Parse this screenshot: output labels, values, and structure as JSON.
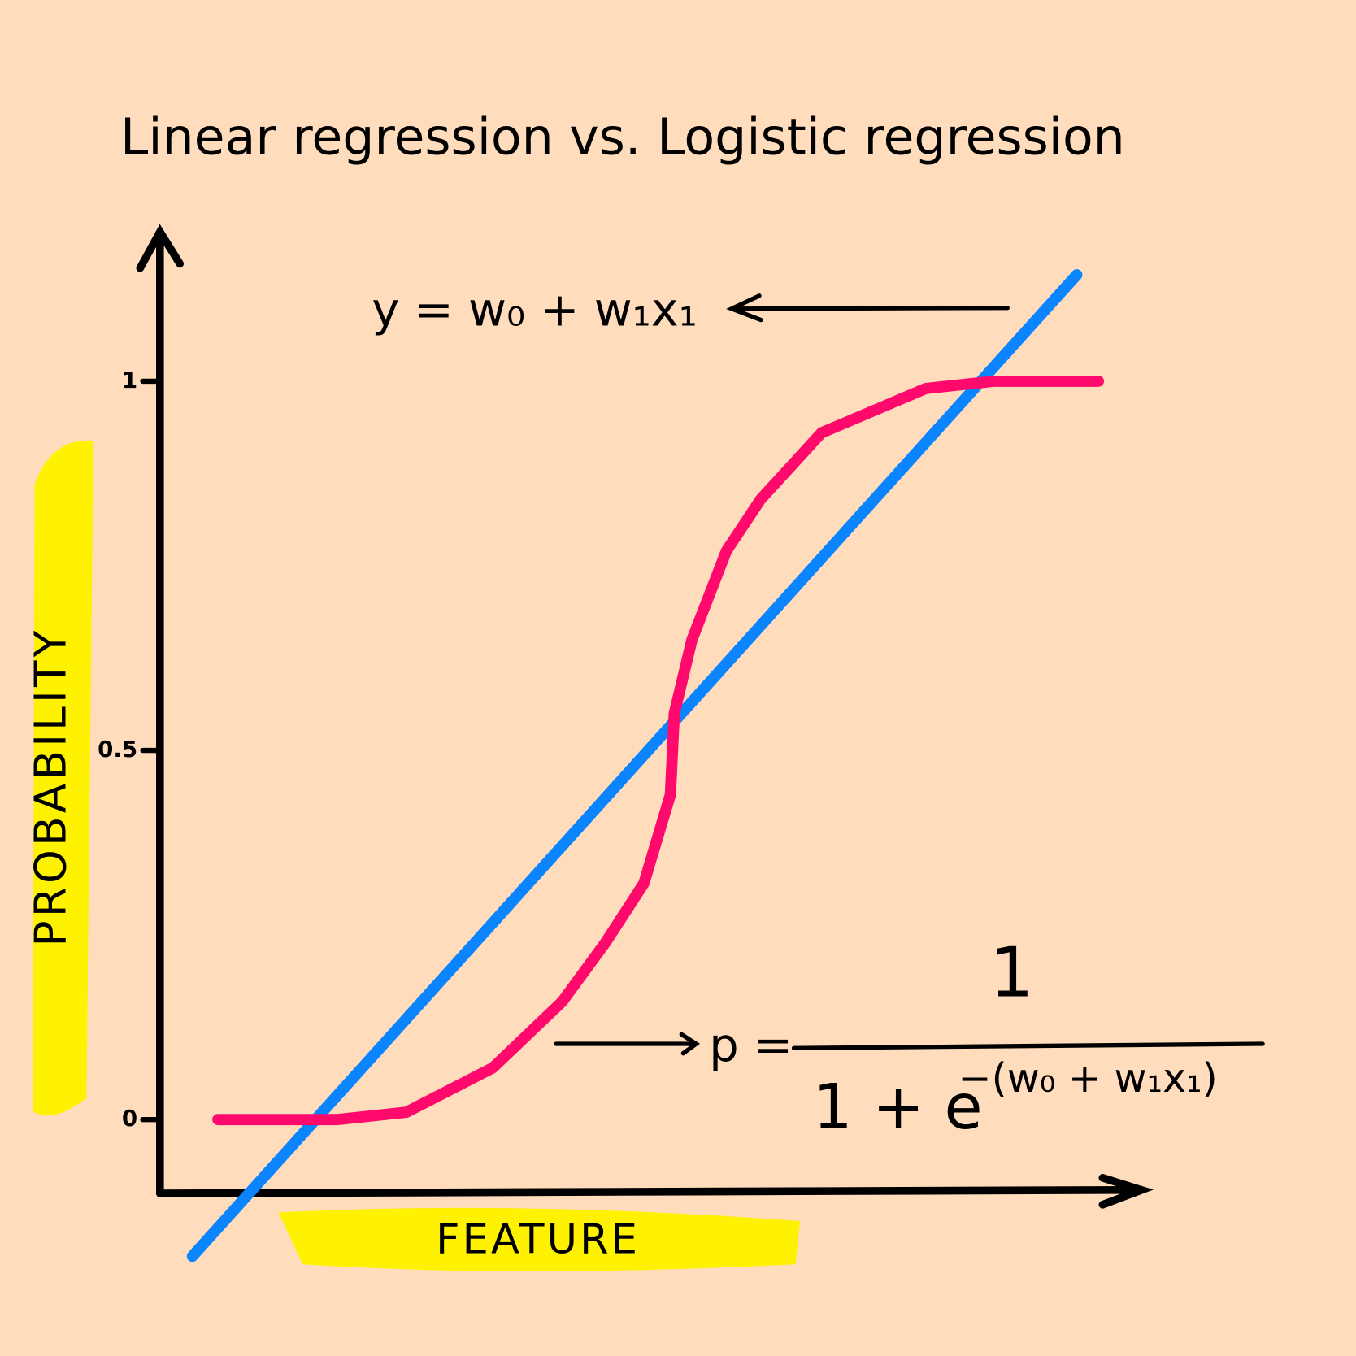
{
  "chart_data": {
    "type": "line",
    "title": "Linear regression vs. Logistic regression",
    "y_label": "PROBABILITY",
    "x_label": "FEATURE",
    "annotations": [
      "y = w₀ + w₁x₁",
      "p =",
      "1",
      "1 + e",
      "−(w₀ + w₁x₁)"
    ],
    "ylim": [
      -0.1,
      1.2
    ],
    "yticks": [
      0,
      0.5,
      1
    ],
    "xlim": [
      0,
      10
    ],
    "series": [
      {
        "color": "#0a84ff",
        "x": [
          0.33,
          9.34
        ],
        "values": [
          -0.185,
          1.144
        ]
      },
      {
        "color": "#ff0a6c",
        "x": [
          0.59,
          1.81,
          2.51,
          3.39,
          4.1,
          4.54,
          4.93,
          5.2,
          5.24,
          5.42,
          5.77,
          6.12,
          6.74,
          7.8,
          8.5,
          9.56
        ],
        "values": [
          0,
          0,
          0.01,
          0.07,
          0.16,
          0.24,
          0.32,
          0.44,
          0.55,
          0.65,
          0.77,
          0.84,
          0.93,
          0.99,
          1.0,
          1.0
        ]
      }
    ]
  }
}
